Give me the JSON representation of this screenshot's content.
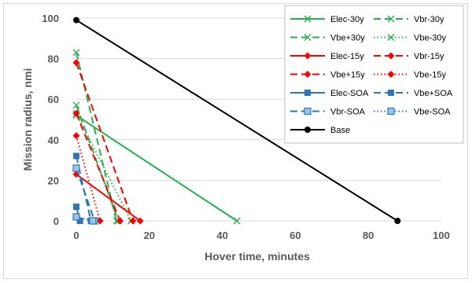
{
  "chart_data": {
    "type": "line",
    "xlabel": "Hover time, minutes",
    "ylabel": "Mission radius, nmi",
    "xlim": [
      0,
      100
    ],
    "ylim": [
      0,
      100
    ],
    "xticks": [
      "0",
      "20",
      "40",
      "60",
      "80",
      "100"
    ],
    "yticks": [
      "0",
      "20",
      "40",
      "60",
      "80",
      "100"
    ],
    "grid": "horizontal",
    "legend_position": "top-right",
    "series": [
      {
        "name": "Elec-30y",
        "color": "#22b14c",
        "dash": "solid",
        "marker": "x",
        "points": [
          [
            0,
            52
          ],
          [
            44,
            0
          ]
        ]
      },
      {
        "name": "Vbr-30y",
        "color": "#22b14c",
        "dash": "long-dash",
        "marker": "x",
        "points": [
          [
            0,
            57
          ],
          [
            11.5,
            0
          ]
        ]
      },
      {
        "name": "Vbe+30y",
        "color": "#22b14c",
        "dash": "long-dash",
        "marker": "x",
        "points": [
          [
            0,
            83
          ],
          [
            11,
            0
          ]
        ]
      },
      {
        "name": "Vbe-30y",
        "color": "#22b14c",
        "dash": "dot",
        "marker": "x",
        "points": [
          [
            0,
            53
          ],
          [
            15,
            0
          ]
        ]
      },
      {
        "name": "Elec-15y",
        "color": "#ff0000",
        "dash": "solid",
        "marker": "diamond",
        "points": [
          [
            0,
            23
          ],
          [
            17.5,
            0
          ]
        ]
      },
      {
        "name": "Vbr-15y",
        "color": "#ff0000",
        "dash": "long-dash",
        "marker": "diamond",
        "points": [
          [
            0,
            53
          ],
          [
            12,
            0
          ]
        ]
      },
      {
        "name": "Vbe+15y",
        "color": "#ff0000",
        "dash": "long-dash",
        "marker": "diamond",
        "points": [
          [
            0,
            78
          ],
          [
            15.5,
            0
          ]
        ]
      },
      {
        "name": "Vbe-15y",
        "color": "#ff0000",
        "dash": "dot",
        "marker": "diamond",
        "points": [
          [
            0,
            42
          ],
          [
            6.5,
            0
          ]
        ]
      },
      {
        "name": "Elec-SOA",
        "color": "#2e75b6",
        "dash": "solid",
        "marker": "square",
        "points": [
          [
            0,
            7
          ],
          [
            1,
            0
          ]
        ]
      },
      {
        "name": "Vbe+SOA",
        "color": "#2e75b6",
        "dash": "long-dash",
        "marker": "square",
        "points": [
          [
            0,
            32
          ],
          [
            4,
            0
          ]
        ]
      },
      {
        "name": "Vbr-SOA",
        "color": "#2e75b6",
        "dash": "long-dash",
        "marker": "square-light",
        "points": [
          [
            0,
            26
          ],
          [
            5,
            0
          ]
        ]
      },
      {
        "name": "Vbe-SOA",
        "color": "#2e75b6",
        "dash": "dot",
        "marker": "square-light",
        "points": [
          [
            0,
            2
          ],
          [
            4.5,
            0
          ]
        ]
      },
      {
        "name": "Base",
        "color": "#000000",
        "dash": "solid",
        "marker": "circle",
        "points": [
          [
            0,
            99
          ],
          [
            88,
            0
          ]
        ]
      }
    ]
  }
}
